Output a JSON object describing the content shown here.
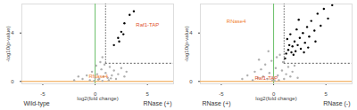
{
  "chart_data": [
    {
      "type": "scatter",
      "x_label": "log2(fold change)",
      "y_label": "-log10(p-value)",
      "xlim": [
        -7,
        7.5
      ],
      "ylim": [
        -0.2,
        6.4
      ],
      "xticks": [
        -5,
        0,
        5
      ],
      "yticks": [
        0,
        4
      ],
      "group_labels": [
        "Wild-type",
        "RNase (+)"
      ],
      "vline": {
        "x": 0,
        "color": "#6abf69"
      },
      "hline": {
        "y": 0,
        "color": "#f0a040"
      },
      "threshold": {
        "x": 1,
        "y": 1.5
      },
      "series": [
        {
          "color": "#b0b0b0",
          "x": [
            -1.2,
            -0.8,
            -0.5,
            -0.3,
            0.0,
            0.2,
            0.4,
            0.6,
            0.8,
            1.0,
            1.2,
            1.4,
            1.6,
            1.8,
            2.0,
            2.2,
            2.5,
            -1.6,
            -2.0,
            0.1,
            0.5,
            0.9,
            0.7,
            1.3,
            -0.1,
            0.3,
            0.7,
            1.5,
            2.8,
            3.0
          ],
          "y": [
            0.2,
            0.5,
            0.1,
            0.8,
            0.3,
            0.6,
            0.2,
            1.0,
            0.4,
            0.7,
            0.3,
            1.2,
            0.5,
            0.9,
            0.2,
            0.6,
            1.1,
            0.4,
            0.1,
            1.3,
            1.6,
            1.4,
            2.0,
            0.1,
            0.05,
            0.15,
            0.05,
            0.25,
            0.4,
            0.8
          ]
        },
        {
          "color": "#000000",
          "x": [
            1.8,
            2.2,
            2.5,
            2.8,
            3.3,
            3.7,
            2.3,
            2.7
          ],
          "y": [
            3.0,
            3.6,
            4.1,
            4.8,
            5.5,
            5.8,
            3.3,
            3.9
          ]
        }
      ],
      "annotations": [
        {
          "text": "Raf1-TAP",
          "x": 3.9,
          "y": 4.7,
          "color": "#e0502a"
        },
        {
          "text": "RNase4",
          "x": -0.6,
          "y": 0.4,
          "color": "#f08030"
        }
      ]
    },
    {
      "type": "scatter",
      "x_label": "log2(fold change)",
      "y_label": "-log10(p-value)",
      "xlim": [
        -7,
        7.5
      ],
      "ylim": [
        -0.2,
        6.4
      ],
      "xticks": [
        -5,
        0,
        5
      ],
      "yticks": [
        0,
        4
      ],
      "group_labels": [
        "RNase (+)",
        "RNase (-)"
      ],
      "vline": {
        "x": 0,
        "color": "#6abf69"
      },
      "hline": {
        "y": 0,
        "color": "#f0a040"
      },
      "threshold": {
        "x": 1,
        "y": 1.5
      },
      "series": [
        {
          "color": "#b0b0b0",
          "x": [
            -3.0,
            -2.5,
            -2.0,
            -1.8,
            -1.5,
            -1.2,
            -1.0,
            -0.8,
            -0.6,
            -0.4,
            -0.2,
            0.0,
            0.2,
            0.4,
            0.6,
            0.8,
            1.0,
            1.2,
            1.4,
            1.6,
            1.8,
            2.0,
            2.3,
            -0.5,
            0.3,
            -1.4,
            0.9,
            0.1,
            -0.1,
            0.5
          ],
          "y": [
            0.2,
            0.5,
            0.1,
            0.8,
            0.3,
            1.0,
            0.4,
            1.4,
            0.2,
            0.7,
            1.7,
            0.3,
            1.1,
            0.5,
            2.2,
            0.9,
            0.2,
            0.6,
            1.2,
            0.4,
            0.8,
            1.3,
            0.3,
            2.5,
            2.0,
            1.8,
            1.6,
            0.05,
            0.1,
            0.1
          ]
        },
        {
          "color": "#000000",
          "x": [
            1.2,
            1.4,
            1.5,
            1.7,
            1.8,
            2.0,
            2.1,
            2.3,
            2.5,
            2.6,
            2.8,
            3.0,
            3.2,
            3.4,
            3.6,
            3.9,
            4.2,
            4.5,
            4.8,
            5.2,
            5.6,
            1.3,
            1.6,
            2.2,
            2.4,
            1.9,
            2.9,
            3.3,
            4.0,
            1.1
          ],
          "y": [
            2.3,
            2.6,
            3.0,
            2.4,
            2.9,
            3.3,
            2.5,
            3.0,
            3.6,
            2.7,
            4.0,
            3.2,
            4.5,
            3.7,
            5.0,
            4.2,
            5.6,
            4.6,
            6.0,
            5.2,
            6.3,
            3.5,
            3.9,
            4.3,
            5.1,
            2.2,
            2.4,
            2.8,
            3.3,
            1.9
          ]
        }
      ],
      "annotations": [
        {
          "text": "RNase4",
          "x": -4.5,
          "y": 5.0,
          "color": "#f08030"
        },
        {
          "text": "Raf1-TAP",
          "x": -1.8,
          "y": 0.3,
          "color": "#e0502a"
        }
      ]
    }
  ]
}
